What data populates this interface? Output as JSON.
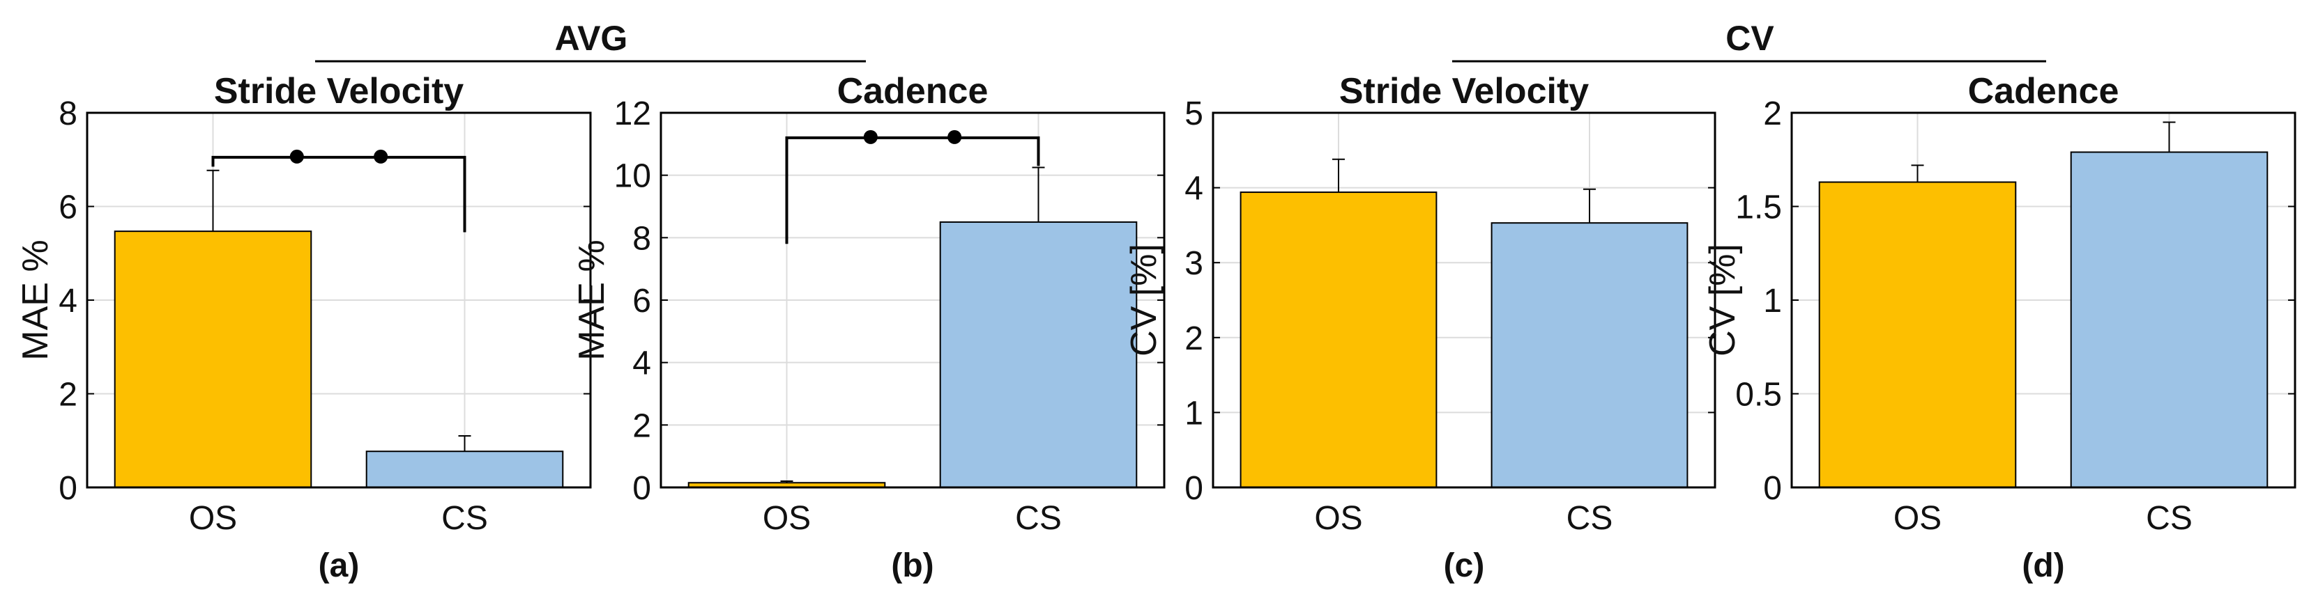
{
  "groups": [
    {
      "label": "AVG",
      "panels": [
        0,
        1
      ]
    },
    {
      "label": "CV",
      "panels": [
        2,
        3
      ]
    }
  ],
  "colors": {
    "OS": "#FDBF00",
    "CS": "#9DC3E6"
  },
  "chart_data": [
    {
      "type": "bar",
      "title": "Stride Velocity",
      "ylabel": "MAE %",
      "sublabel": "(a)",
      "categories": [
        "OS",
        "CS"
      ],
      "values": [
        5.47,
        0.77
      ],
      "errors": [
        1.3,
        0.33
      ],
      "ylim": [
        0,
        8
      ],
      "yticks": [
        0,
        2,
        4,
        6,
        8
      ],
      "ytick_labels": [
        "0",
        "2",
        "4",
        "6",
        "8"
      ],
      "grid": true,
      "significance": {
        "pair": [
          "OS",
          "CS"
        ],
        "marks": 2,
        "left_y": 6.85,
        "right_y": 5.45,
        "top_y": 7.05
      }
    },
    {
      "type": "bar",
      "title": "Cadence",
      "ylabel": "MAE %",
      "sublabel": "(b)",
      "categories": [
        "OS",
        "CS"
      ],
      "values": [
        0.15,
        8.5
      ],
      "errors": [
        0.05,
        1.75
      ],
      "ylim": [
        0,
        12
      ],
      "yticks": [
        0,
        2,
        4,
        6,
        8,
        10,
        12
      ],
      "ytick_labels": [
        "0",
        "2",
        "4",
        "6",
        "8",
        "10",
        "12"
      ],
      "grid": true,
      "significance": {
        "pair": [
          "OS",
          "CS"
        ],
        "marks": 2,
        "left_y": 7.8,
        "right_y": 10.3,
        "top_y": 11.2
      }
    },
    {
      "type": "bar",
      "title": "Stride Velocity",
      "ylabel": "CV [%]",
      "sublabel": "(c)",
      "categories": [
        "OS",
        "CS"
      ],
      "values": [
        3.94,
        3.53
      ],
      "errors": [
        0.44,
        0.45
      ],
      "ylim": [
        0,
        5
      ],
      "yticks": [
        0,
        1,
        2,
        3,
        4,
        5
      ],
      "ytick_labels": [
        "0",
        "1",
        "2",
        "3",
        "4",
        "5"
      ],
      "grid": true
    },
    {
      "type": "bar",
      "title": "Cadence",
      "ylabel": "CV [%]",
      "sublabel": "(d)",
      "categories": [
        "OS",
        "CS"
      ],
      "values": [
        1.63,
        1.79
      ],
      "errors": [
        0.09,
        0.16
      ],
      "ylim": [
        0,
        2
      ],
      "yticks": [
        0,
        0.5,
        1,
        1.5,
        2
      ],
      "ytick_labels": [
        "0",
        "0.5",
        "1",
        "1.5",
        "2"
      ],
      "grid": true
    }
  ]
}
